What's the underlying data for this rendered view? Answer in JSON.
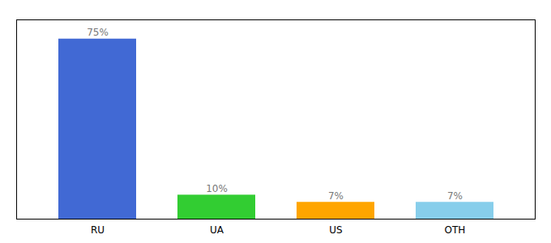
{
  "chart_data": {
    "type": "bar",
    "categories": [
      "RU",
      "UA",
      "US",
      "OTH"
    ],
    "values": [
      75,
      10,
      7,
      7
    ],
    "value_labels": [
      "75%",
      "10%",
      "7%",
      "7%"
    ],
    "colors": [
      "#4169d4",
      "#32cd32",
      "#ffa500",
      "#87ceeb"
    ],
    "ylim": [
      0,
      83
    ],
    "data_labels": true,
    "tick_labels": "x",
    "grid": false
  }
}
